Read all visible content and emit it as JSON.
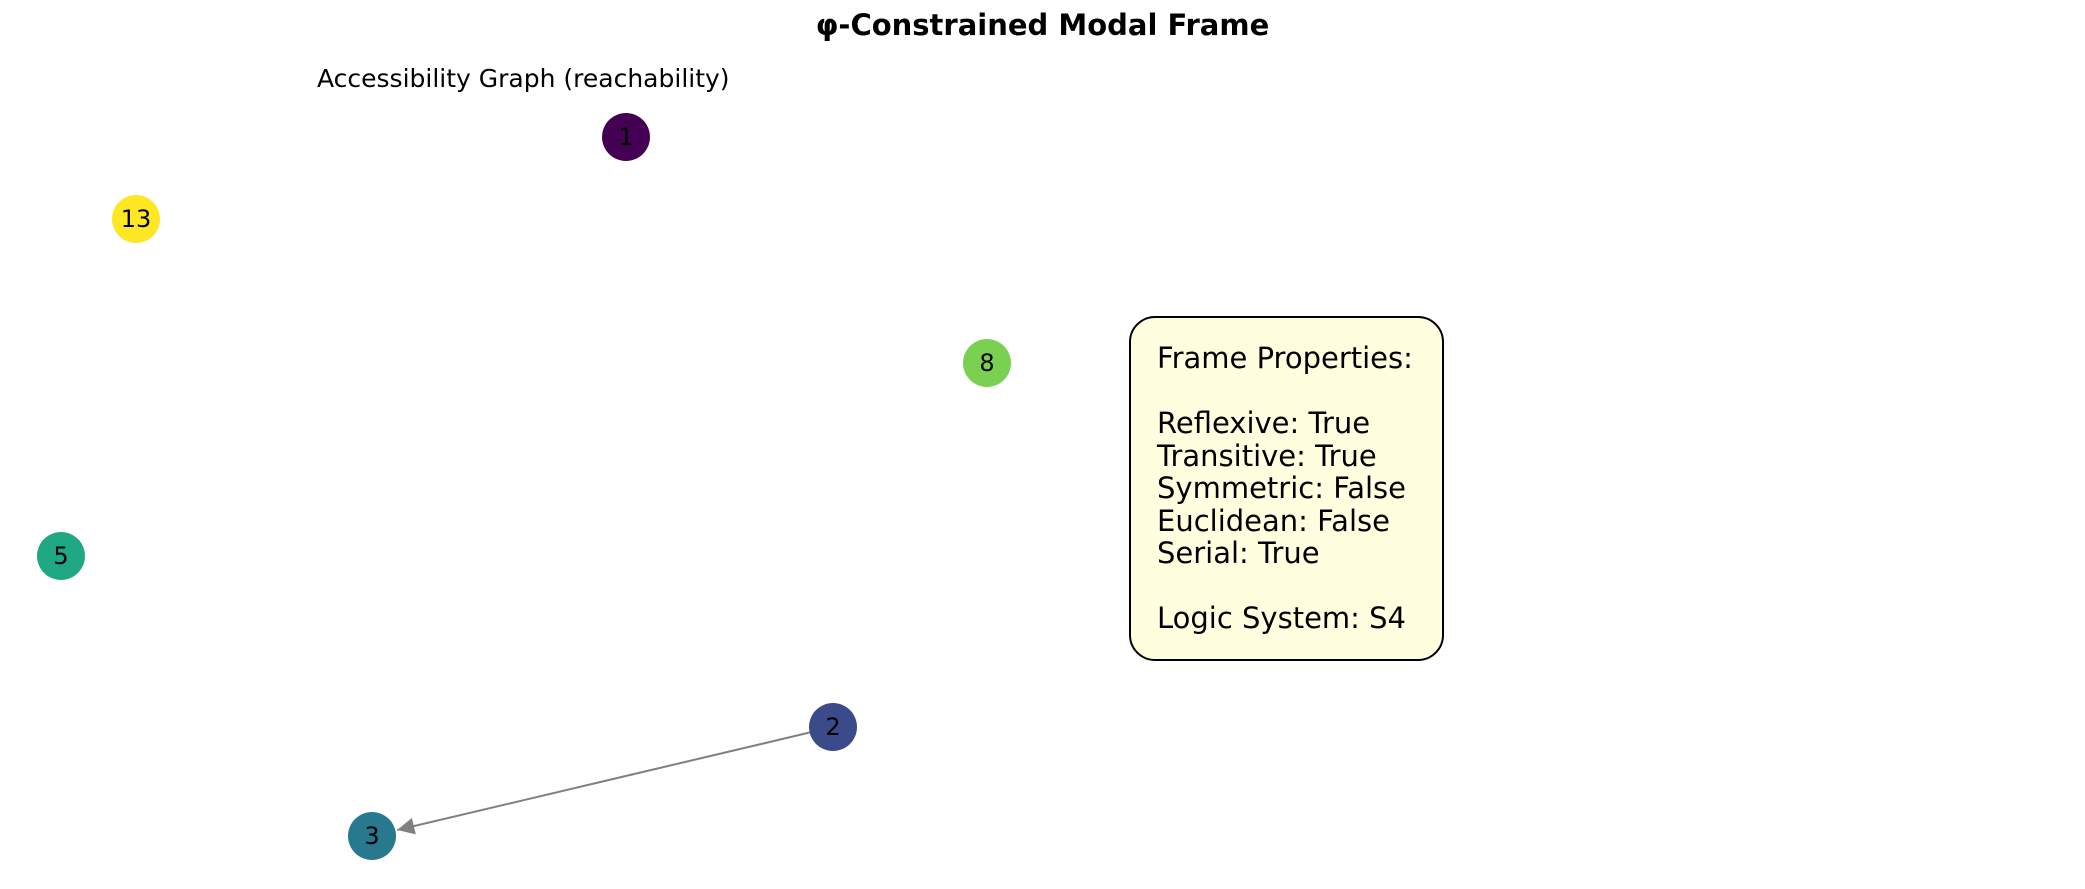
{
  "figure": {
    "title": "φ-Constrained Modal Frame",
    "subtitle": "Accessibility Graph (reachability)"
  },
  "graph": {
    "nodes": [
      {
        "id": "1",
        "label": "1",
        "color": "#440154"
      },
      {
        "id": "2",
        "label": "2",
        "color": "#3b4a8b"
      },
      {
        "id": "3",
        "label": "3",
        "color": "#28788e"
      },
      {
        "id": "5",
        "label": "5",
        "color": "#20a884"
      },
      {
        "id": "8",
        "label": "8",
        "color": "#7ad151"
      },
      {
        "id": "13",
        "label": "13",
        "color": "#fde725"
      }
    ],
    "edges": [
      {
        "from": "2",
        "to": "3",
        "color": "#808080"
      }
    ]
  },
  "properties": {
    "heading": "Frame Properties:",
    "reflexive": "Reflexive: True",
    "transitive": "Transitive: True",
    "symmetric": "Symmetric: False",
    "euclidean": "Euclidean: False",
    "serial": "Serial: True",
    "logic_system": "Logic System: S4",
    "box_color": "#ffffe0"
  }
}
